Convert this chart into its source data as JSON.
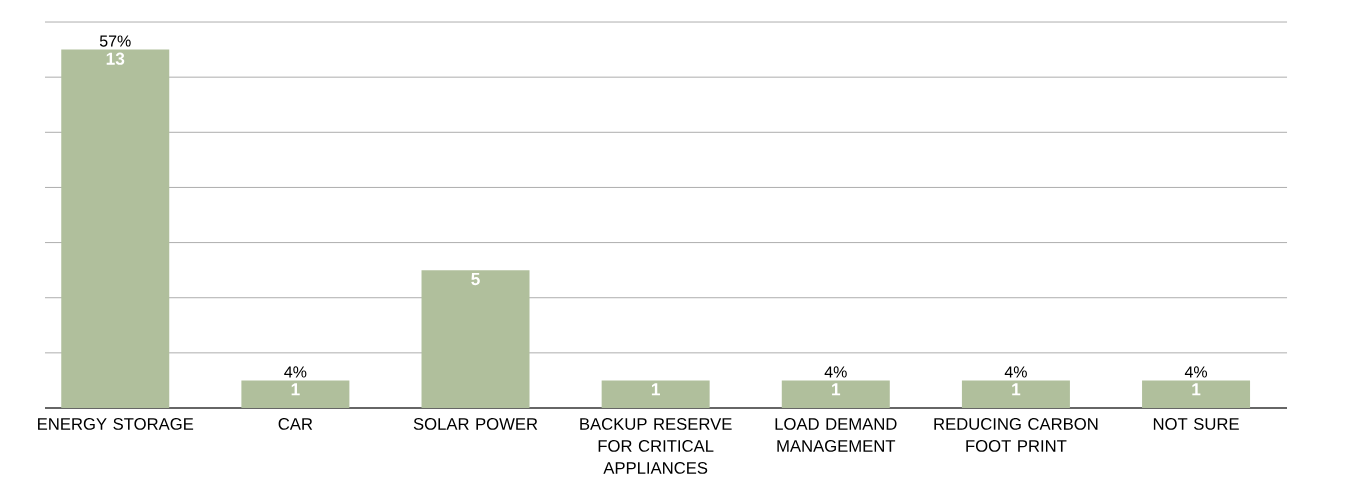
{
  "chart_data": {
    "type": "bar",
    "categories": [
      "ENERGY STORAGE",
      "CAR",
      "SOLAR POWER",
      "BACKUP RESERVE FOR CRITICAL APPLIANCES",
      "LOAD DEMAND MANAGEMENT",
      "REDUCING CARBON FOOT PRINT",
      "NOT SURE"
    ],
    "values": [
      13,
      1,
      5,
      1,
      1,
      1,
      1
    ],
    "color": "#b0bf9c",
    "data_labels": true,
    "tick_labels": "x",
    "grid": "y",
    "annotations": [
      {
        "text": "57%",
        "x": "ENERGY STORAGE",
        "y": 13
      },
      {
        "text": "4%",
        "x": "CAR",
        "y": 1
      },
      {
        "text": "4%",
        "x": "LOAD DEMAND MANAGEMENT",
        "y": 1
      },
      {
        "text": "4%",
        "x": "REDUCING CARBON FOOT PRINT",
        "y": 1
      },
      {
        "text": "4%",
        "x": "NOT SURE",
        "y": 1
      }
    ]
  }
}
